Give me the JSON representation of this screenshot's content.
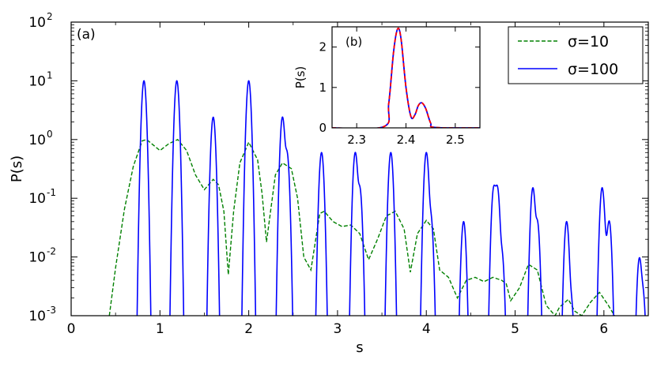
{
  "chart_data": [
    {
      "type": "line",
      "panel_label": "(a)",
      "xlabel": "s",
      "ylabel": "P(s)",
      "xlim": [
        0,
        6.5
      ],
      "ylim": [
        0.001,
        100
      ],
      "yscale": "log",
      "x_ticks": [
        "0",
        "1",
        "2",
        "3",
        "4",
        "5",
        "6"
      ],
      "y_ticks": [
        {
          "base": "10",
          "exp": "-3"
        },
        {
          "base": "10",
          "exp": "-2"
        },
        {
          "base": "10",
          "exp": "-1"
        },
        {
          "base": "10",
          "exp": "0"
        },
        {
          "base": "10",
          "exp": "1"
        },
        {
          "base": "10",
          "exp": "2"
        }
      ],
      "legend_position": "top-right",
      "series": [
        {
          "name": "σ=10",
          "style": "dashed",
          "color": "#008000",
          "x": [
            0.43,
            0.5,
            0.6,
            0.7,
            0.8,
            0.85,
            1.0,
            1.1,
            1.2,
            1.3,
            1.4,
            1.5,
            1.6,
            1.66,
            1.72,
            1.77,
            1.83,
            1.9,
            2.0,
            2.1,
            2.15,
            2.2,
            2.3,
            2.38,
            2.48,
            2.55,
            2.62,
            2.7,
            2.8,
            2.85,
            2.95,
            3.05,
            3.15,
            3.25,
            3.35,
            3.45,
            3.55,
            3.65,
            3.75,
            3.82,
            3.9,
            4.0,
            4.08,
            4.15,
            4.25,
            4.35,
            4.45,
            4.55,
            4.65,
            4.75,
            4.85,
            4.9,
            4.95,
            5.05,
            5.15,
            5.25,
            5.35,
            5.45,
            5.5,
            5.6,
            5.67,
            5.75,
            5.85,
            5.95,
            6.05,
            6.12
          ],
          "y": [
            0.001,
            0.0065,
            0.065,
            0.35,
            0.95,
            1.0,
            0.65,
            0.85,
            1.0,
            0.65,
            0.25,
            0.14,
            0.21,
            0.17,
            0.06,
            0.005,
            0.06,
            0.4,
            0.9,
            0.45,
            0.12,
            0.018,
            0.25,
            0.4,
            0.32,
            0.1,
            0.01,
            0.006,
            0.055,
            0.06,
            0.04,
            0.033,
            0.035,
            0.025,
            0.009,
            0.02,
            0.05,
            0.06,
            0.03,
            0.0055,
            0.025,
            0.042,
            0.03,
            0.006,
            0.0045,
            0.002,
            0.004,
            0.0045,
            0.0038,
            0.0045,
            0.004,
            0.0035,
            0.0018,
            0.003,
            0.0075,
            0.006,
            0.0015,
            0.001,
            0.0014,
            0.0019,
            0.0012,
            0.001,
            0.0017,
            0.0025,
            0.0015,
            0.001
          ]
        },
        {
          "name": "σ=100",
          "style": "solid",
          "color": "#0000ff",
          "peaks": [
            {
              "x": 0.82,
              "y": 10
            },
            {
              "x": 1.19,
              "y": 10
            },
            {
              "x": 1.6,
              "y": 2.4
            },
            {
              "x": 2.0,
              "y": 10
            },
            {
              "x": 2.38,
              "y": 2.4
            },
            {
              "x": 2.43,
              "y": 0.6
            },
            {
              "x": 2.82,
              "y": 0.6
            },
            {
              "x": 3.2,
              "y": 0.6
            },
            {
              "x": 3.25,
              "y": 0.15
            },
            {
              "x": 3.6,
              "y": 0.6
            },
            {
              "x": 4.0,
              "y": 0.6
            },
            {
              "x": 4.05,
              "y": 0.05
            },
            {
              "x": 4.42,
              "y": 0.04
            },
            {
              "x": 4.76,
              "y": 0.15
            },
            {
              "x": 4.8,
              "y": 0.15
            },
            {
              "x": 4.85,
              "y": 0.012
            },
            {
              "x": 5.2,
              "y": 0.15
            },
            {
              "x": 5.25,
              "y": 0.04
            },
            {
              "x": 5.58,
              "y": 0.04
            },
            {
              "x": 5.63,
              "y": 0.002
            },
            {
              "x": 5.98,
              "y": 0.15
            },
            {
              "x": 6.02,
              "y": 0.012
            },
            {
              "x": 6.06,
              "y": 0.04
            },
            {
              "x": 6.4,
              "y": 0.0095
            },
            {
              "x": 6.44,
              "y": 0.0024
            }
          ]
        }
      ]
    },
    {
      "type": "line",
      "panel_label": "(b)",
      "ylabel": "P(s)",
      "xlim": [
        2.25,
        2.55
      ],
      "ylim": [
        0,
        2.5
      ],
      "x_ticks": [
        "2.3",
        "2.4",
        "2.5"
      ],
      "y_ticks": [
        "0",
        "1",
        "2"
      ],
      "series": [
        {
          "style": "solid",
          "color": "#0000ff",
          "x": [
            2.25,
            2.355,
            2.365,
            2.375,
            2.383,
            2.39,
            2.4,
            2.41,
            2.418,
            2.425,
            2.432,
            2.44,
            2.45,
            2.46,
            2.55
          ],
          "y": [
            0,
            0.03,
            0.6,
            1.9,
            2.45,
            2.2,
            1.0,
            0.28,
            0.32,
            0.55,
            0.62,
            0.48,
            0.12,
            0.01,
            0
          ]
        },
        {
          "style": "dashed",
          "color": "#ff0000",
          "x": [
            2.25,
            2.355,
            2.365,
            2.375,
            2.383,
            2.39,
            2.4,
            2.41,
            2.418,
            2.425,
            2.432,
            2.44,
            2.45,
            2.46,
            2.55
          ],
          "y": [
            0,
            0.03,
            0.6,
            1.9,
            2.45,
            2.2,
            1.0,
            0.28,
            0.32,
            0.55,
            0.62,
            0.48,
            0.12,
            0.01,
            0
          ]
        }
      ]
    }
  ]
}
